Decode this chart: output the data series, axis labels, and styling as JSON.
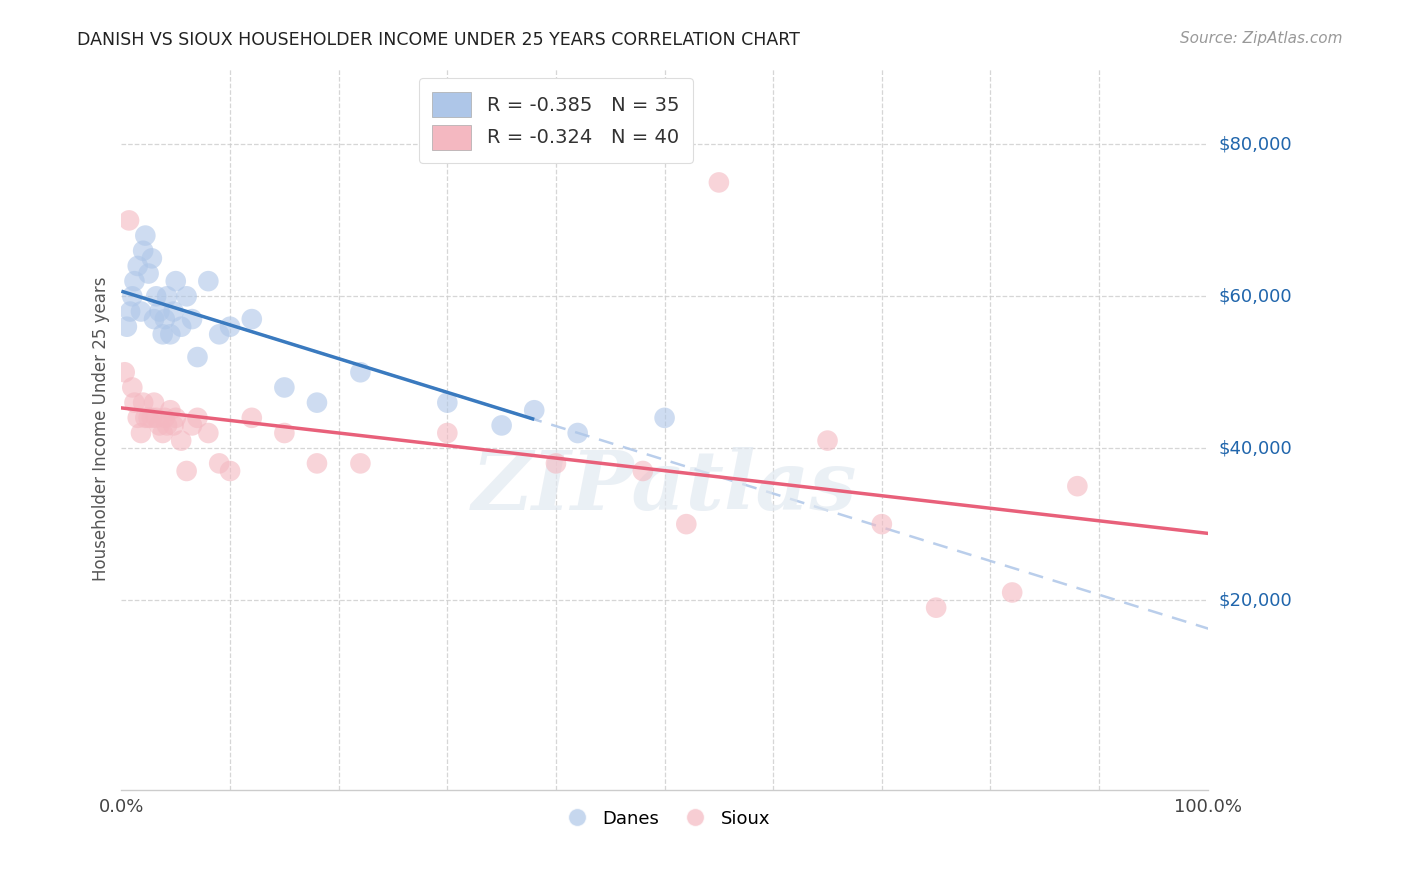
{
  "title": "DANISH VS SIOUX HOUSEHOLDER INCOME UNDER 25 YEARS CORRELATION CHART",
  "source": "Source: ZipAtlas.com",
  "ylabel": "Householder Income Under 25 years",
  "xlim": [
    0,
    1.0
  ],
  "ylim": [
    -5000,
    90000
  ],
  "ytick_labels": [
    "$20,000",
    "$40,000",
    "$60,000",
    "$80,000"
  ],
  "ytick_values": [
    20000,
    40000,
    60000,
    80000
  ],
  "danes_x": [
    0.005,
    0.008,
    0.01,
    0.012,
    0.015,
    0.018,
    0.02,
    0.022,
    0.025,
    0.028,
    0.03,
    0.032,
    0.035,
    0.038,
    0.04,
    0.042,
    0.045,
    0.048,
    0.05,
    0.055,
    0.06,
    0.065,
    0.07,
    0.08,
    0.09,
    0.1,
    0.12,
    0.15,
    0.18,
    0.22,
    0.3,
    0.35,
    0.38,
    0.42,
    0.5
  ],
  "danes_y": [
    56000,
    58000,
    60000,
    62000,
    64000,
    58000,
    66000,
    68000,
    63000,
    65000,
    57000,
    60000,
    58000,
    55000,
    57000,
    60000,
    55000,
    58000,
    62000,
    56000,
    60000,
    57000,
    52000,
    62000,
    55000,
    56000,
    57000,
    48000,
    46000,
    50000,
    46000,
    43000,
    45000,
    42000,
    44000
  ],
  "sioux_x": [
    0.003,
    0.007,
    0.01,
    0.012,
    0.015,
    0.018,
    0.02,
    0.022,
    0.025,
    0.028,
    0.03,
    0.032,
    0.035,
    0.038,
    0.04,
    0.042,
    0.045,
    0.048,
    0.05,
    0.055,
    0.06,
    0.065,
    0.07,
    0.08,
    0.09,
    0.1,
    0.12,
    0.15,
    0.18,
    0.22,
    0.3,
    0.4,
    0.48,
    0.52,
    0.55,
    0.65,
    0.7,
    0.75,
    0.82,
    0.88
  ],
  "sioux_y": [
    50000,
    70000,
    48000,
    46000,
    44000,
    42000,
    46000,
    44000,
    44000,
    44000,
    46000,
    44000,
    43000,
    42000,
    44000,
    43000,
    45000,
    43000,
    44000,
    41000,
    37000,
    43000,
    44000,
    42000,
    38000,
    37000,
    44000,
    42000,
    38000,
    38000,
    42000,
    38000,
    37000,
    30000,
    75000,
    41000,
    30000,
    19000,
    21000,
    35000
  ],
  "danes_color": "#aec6e8",
  "sioux_color": "#f4b8c1",
  "danes_line_color": "#3a7abf",
  "sioux_line_color": "#e8607a",
  "danes_dash_color": "#aec6e8",
  "background_color": "#ffffff",
  "grid_color": "#cccccc",
  "danes_line_x_end": 0.38,
  "watermark_text": "ZIPatlas",
  "danes_legend": "R = -0.385   N = 35",
  "sioux_legend": "R = -0.324   N = 40",
  "bottom_legend_danes": "Danes",
  "bottom_legend_sioux": "Sioux"
}
